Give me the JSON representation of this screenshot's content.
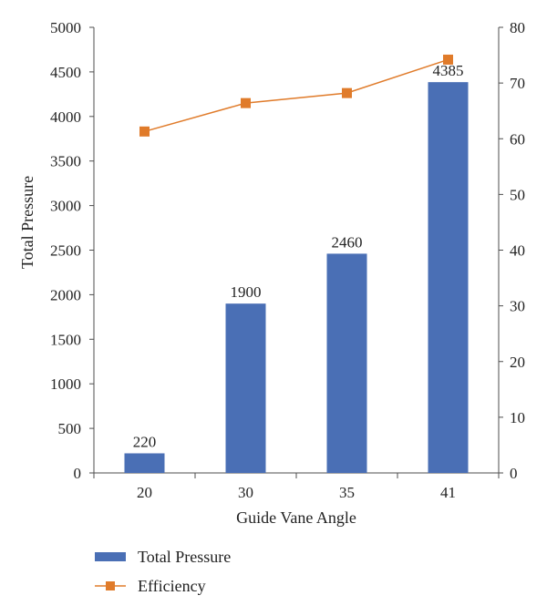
{
  "chart_data": {
    "type": "bar",
    "categories": [
      "20",
      "30",
      "35",
      "41"
    ],
    "series": [
      {
        "name": "Total Pressure",
        "kind": "bar",
        "axis": "left",
        "values": [
          220,
          1900,
          2460,
          4385
        ],
        "data_labels": [
          "220",
          "1900",
          "2460",
          "4385"
        ],
        "color": "#4a6fb5"
      },
      {
        "name": "Efficiency",
        "kind": "line",
        "axis": "right",
        "marker": "square",
        "values": [
          61.3,
          66.4,
          68.2,
          74.2
        ],
        "color": "#e07b2a"
      }
    ],
    "xlabel": "Guide Vane Angle",
    "ylabel": "Total Pressure",
    "ylim": [
      0,
      5000
    ],
    "y_ticks": [
      "0",
      "500",
      "1000",
      "1500",
      "2000",
      "2500",
      "3000",
      "3500",
      "4000",
      "4500",
      "5000"
    ],
    "y2lim": [
      0,
      80
    ],
    "y2_ticks": [
      "0",
      "10",
      "20",
      "30",
      "40",
      "50",
      "60",
      "70",
      "80"
    ],
    "grid": false,
    "legend_position": "bottom"
  }
}
